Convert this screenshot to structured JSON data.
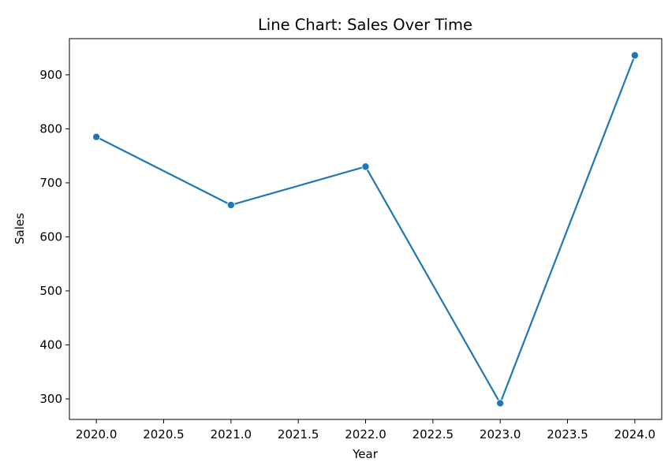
{
  "chart_data": {
    "type": "line",
    "title": "Line Chart: Sales Over Time",
    "xlabel": "Year",
    "ylabel": "Sales",
    "x": [
      2020,
      2021,
      2022,
      2023,
      2024
    ],
    "series": [
      {
        "values": [
          785,
          659,
          730,
          292,
          936
        ],
        "color": "#1f77b4",
        "marker": "circle"
      }
    ],
    "xlim": [
      2019.8,
      2024.2
    ],
    "ylim": [
      262,
      967
    ],
    "xticks": [
      2020.0,
      2020.5,
      2021.0,
      2021.5,
      2022.0,
      2022.5,
      2023.0,
      2023.5,
      2024.0
    ],
    "xtick_labels": [
      "2020.0",
      "2020.5",
      "2021.0",
      "2021.5",
      "2022.0",
      "2022.5",
      "2023.0",
      "2023.5",
      "2024.0"
    ],
    "yticks": [
      300,
      400,
      500,
      600,
      700,
      800,
      900
    ],
    "ytick_labels": [
      "300",
      "400",
      "500",
      "600",
      "700",
      "800",
      "900"
    ],
    "grid": false,
    "legend": null
  }
}
